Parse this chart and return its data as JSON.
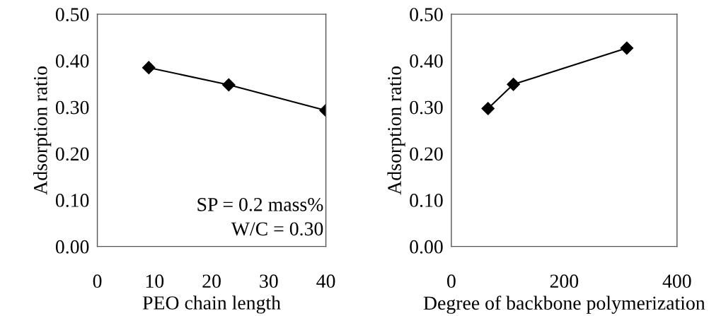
{
  "chart_data": [
    {
      "type": "line",
      "xlabel": "PEO chain length",
      "ylabel": "Adsorption ratio",
      "x": [
        9,
        23,
        40
      ],
      "series": [
        {
          "color": "#000000",
          "values": [
            0.385,
            0.348,
            0.293
          ]
        }
      ],
      "xlim": [
        0,
        40
      ],
      "xticks": [
        0,
        10,
        20,
        30,
        40
      ],
      "ylim": [
        0,
        0.5
      ],
      "yticks": [
        {
          "value": 0,
          "label": "0.00"
        },
        {
          "value": 0.1,
          "label": "0.10"
        },
        {
          "value": 0.2,
          "label": "0.20"
        },
        {
          "value": 0.3,
          "label": "0.30"
        },
        {
          "value": 0.4,
          "label": "0.40"
        },
        {
          "value": 0.5,
          "label": "0.50"
        }
      ],
      "marker": "diamond",
      "line_style": "solid",
      "grid": false,
      "annotations": [
        "SP = 0.2 mass%",
        "W/C = 0.30"
      ]
    },
    {
      "type": "line",
      "xlabel": "Degree of backbone polymerization",
      "ylabel": "Adsorption ratio",
      "x": [
        65,
        110,
        311
      ],
      "series": [
        {
          "color": "#000000",
          "values": [
            0.297,
            0.349,
            0.427
          ]
        }
      ],
      "xlim": [
        0,
        400
      ],
      "xticks": [
        0,
        200,
        400
      ],
      "ylim": [
        0,
        0.5
      ],
      "yticks": [
        {
          "value": 0,
          "label": "0.00"
        },
        {
          "value": 0.1,
          "label": "0.10"
        },
        {
          "value": 0.2,
          "label": "0.20"
        },
        {
          "value": 0.3,
          "label": "0.30"
        },
        {
          "value": 0.4,
          "label": "0.40"
        },
        {
          "value": 0.5,
          "label": "0.50"
        }
      ],
      "marker": "diamond",
      "line_style": "solid",
      "grid": false
    }
  ]
}
